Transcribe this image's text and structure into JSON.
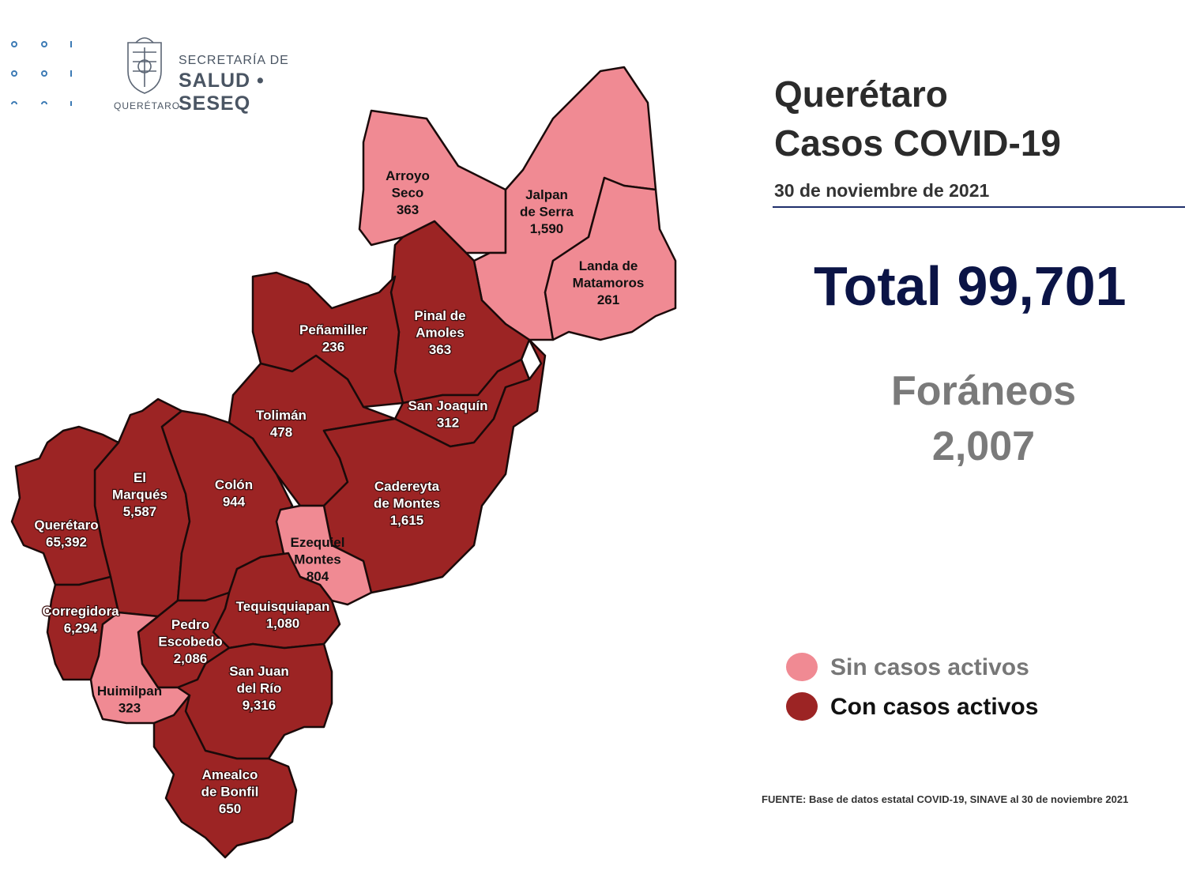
{
  "header": {
    "org_line1": "SECRETARÍA DE",
    "org_line2": "SALUD • SESEQ",
    "org_city": "QUERÉTARO",
    "logo_icon": "state-coat-of-arms-icon"
  },
  "title": {
    "line1": "Querétaro",
    "line2": "Casos COVID-19",
    "date": "30 de noviembre de 2021"
  },
  "total": "Total 99,701",
  "foraneos": {
    "label": "Foráneos",
    "value": "2,007"
  },
  "legend": {
    "inactive": {
      "label": "Sin casos activos",
      "color": "#f08a93"
    },
    "active": {
      "label": "Con casos activos",
      "color": "#9c2424"
    }
  },
  "source": "FUENTE: Base de datos estatal COVID-19, SINAVE al 30 de noviembre 2021",
  "municipalities": [
    {
      "name": "Arroyo Seco",
      "lines": [
        "Arroyo",
        "Seco",
        "363"
      ],
      "cases": 363,
      "active": false
    },
    {
      "name": "Jalpan de Serra",
      "lines": [
        "Jalpan",
        "de Serra",
        "1,590"
      ],
      "cases": 1590,
      "active": false
    },
    {
      "name": "Landa de Matamoros",
      "lines": [
        "Landa de",
        "Matamoros",
        "261"
      ],
      "cases": 261,
      "active": false
    },
    {
      "name": "Pinal de Amoles",
      "lines": [
        "Pinal de",
        "Amoles",
        "363"
      ],
      "cases": 363,
      "active": true
    },
    {
      "name": "Peñamiller",
      "lines": [
        "Peñamiller",
        "236"
      ],
      "cases": 236,
      "active": true
    },
    {
      "name": "San Joaquín",
      "lines": [
        "San Joaquín",
        "312"
      ],
      "cases": 312,
      "active": true
    },
    {
      "name": "Tolimán",
      "lines": [
        "Tolimán",
        "478"
      ],
      "cases": 478,
      "active": true
    },
    {
      "name": "Cadereyta de Montes",
      "lines": [
        "Cadereyta",
        "de Montes",
        "1,615"
      ],
      "cases": 1615,
      "active": true
    },
    {
      "name": "El Marqués",
      "lines": [
        "El",
        "Marqués",
        "5,587"
      ],
      "cases": 5587,
      "active": true
    },
    {
      "name": "Colón",
      "lines": [
        "Colón",
        "944"
      ],
      "cases": 944,
      "active": true
    },
    {
      "name": "Querétaro",
      "lines": [
        "Querétaro",
        "65,392"
      ],
      "cases": 65392,
      "active": true
    },
    {
      "name": "Ezequiel Montes",
      "lines": [
        "Ezequiel",
        "Montes",
        "804"
      ],
      "cases": 804,
      "active": false
    },
    {
      "name": "Corregidora",
      "lines": [
        "Corregidora",
        "6,294"
      ],
      "cases": 6294,
      "active": true
    },
    {
      "name": "Tequisquiapan",
      "lines": [
        "Tequisquiapan",
        "1,080"
      ],
      "cases": 1080,
      "active": true
    },
    {
      "name": "Pedro Escobedo",
      "lines": [
        "Pedro",
        "Escobedo",
        "2,086"
      ],
      "cases": 2086,
      "active": true
    },
    {
      "name": "San Juan del Río",
      "lines": [
        "San Juan",
        "del Río",
        "9,316"
      ],
      "cases": 9316,
      "active": true
    },
    {
      "name": "Huimilpan",
      "lines": [
        "Huimilpan",
        "323"
      ],
      "cases": 323,
      "active": false
    },
    {
      "name": "Amealco de Bonfil",
      "lines": [
        "Amealco",
        "de Bonfil",
        "650"
      ],
      "cases": 650,
      "active": true
    }
  ]
}
